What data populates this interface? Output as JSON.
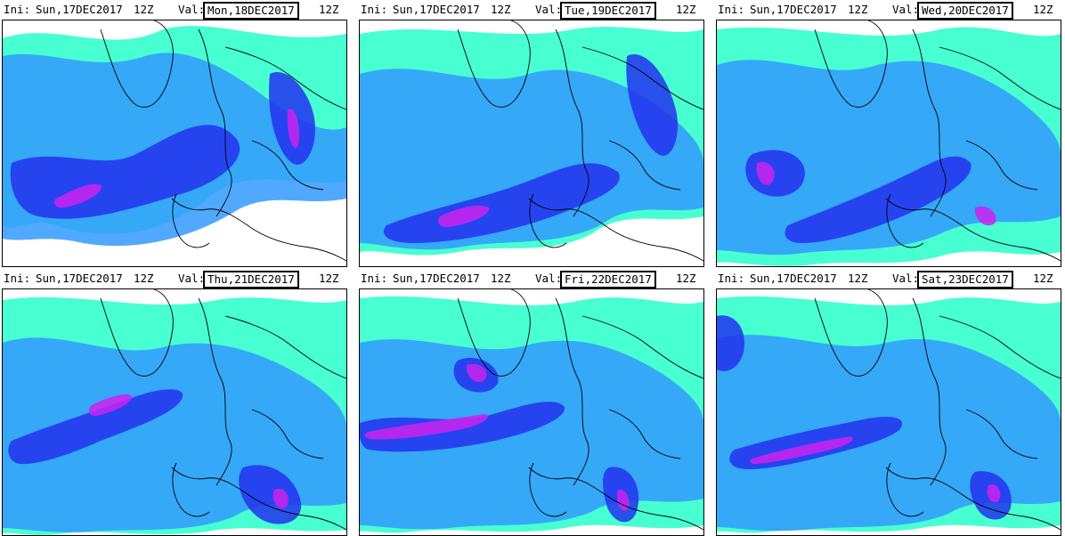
{
  "panels": [
    {
      "ini_label": "Ini:",
      "ini": "Sun,17DEC2017",
      "ini_hour": "12Z",
      "val_label": "Val:",
      "val_date": "Mon,18DEC2017",
      "val_hour": "12Z"
    },
    {
      "ini_label": "Ini:",
      "ini": "Sun,17DEC2017",
      "ini_hour": "12Z",
      "val_label": "Val:",
      "val_date": "Tue,19DEC2017",
      "val_hour": "12Z"
    },
    {
      "ini_label": "Ini:",
      "ini": "Sun,17DEC2017",
      "ini_hour": "12Z",
      "val_label": "Val:",
      "val_date": "Wed,20DEC2017",
      "val_hour": "12Z"
    },
    {
      "ini_label": "Ini:",
      "ini": "Sun,17DEC2017",
      "ini_hour": "12Z",
      "val_label": "Val:",
      "val_date": "Thu,21DEC2017",
      "val_hour": "12Z"
    },
    {
      "ini_label": "Ini:",
      "ini": "Sun,17DEC2017",
      "ini_hour": "12Z",
      "val_label": "Val:",
      "val_date": "Fri,22DEC2017",
      "val_hour": "12Z"
    },
    {
      "ini_label": "Ini:",
      "ini": "Sun,17DEC2017",
      "ini_hour": "12Z",
      "val_label": "Val:",
      "val_date": "Sat,23DEC2017",
      "val_hour": "12Z"
    }
  ],
  "colors": {
    "light": "#33ffcc",
    "medium": "#3399ff",
    "strong": "#2233ee",
    "intense": "#cc22ee",
    "coast": "#000000"
  }
}
